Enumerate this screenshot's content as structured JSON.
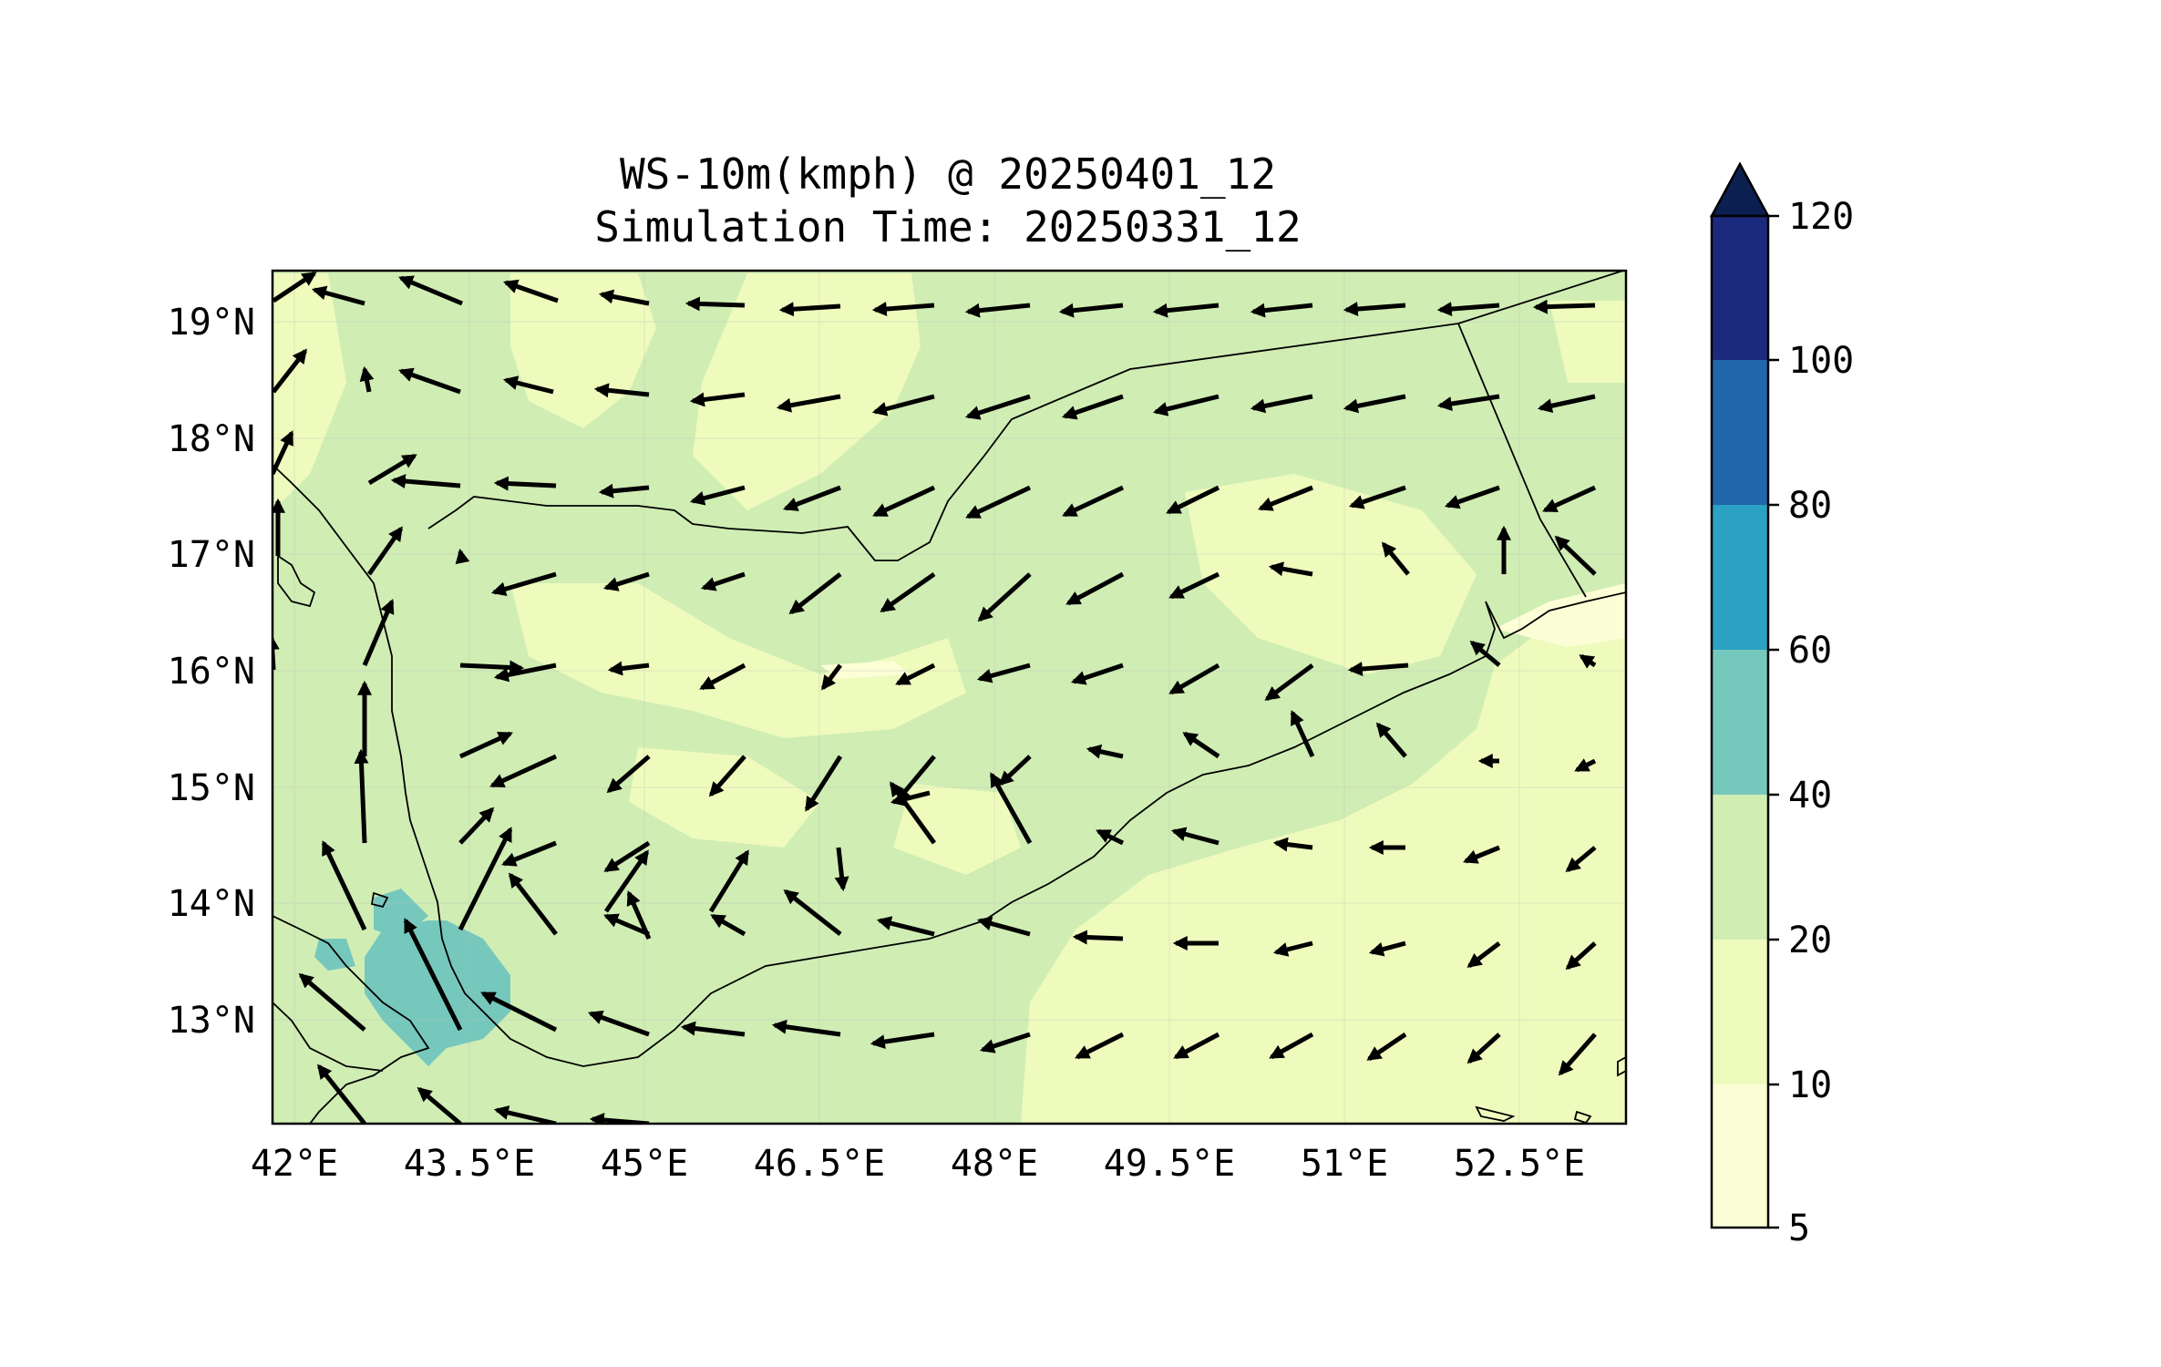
{
  "title": "WS-10m(kmph) @ 20250401_12",
  "subtitle": "Simulation Time: 20250331_12",
  "lon_ticks": [
    {
      "value": 42.0,
      "label": "42°E"
    },
    {
      "value": 43.5,
      "label": "43.5°E"
    },
    {
      "value": 45.0,
      "label": "45°E"
    },
    {
      "value": 46.5,
      "label": "46.5°E"
    },
    {
      "value": 48.0,
      "label": "48°E"
    },
    {
      "value": 49.5,
      "label": "49.5°E"
    },
    {
      "value": 51.0,
      "label": "51°E"
    },
    {
      "value": 52.5,
      "label": "52.5°E"
    }
  ],
  "lat_ticks": [
    {
      "value": 19,
      "label": "19°N"
    },
    {
      "value": 18,
      "label": "18°N"
    },
    {
      "value": 17,
      "label": "17°N"
    },
    {
      "value": 16,
      "label": "16°N"
    },
    {
      "value": 15,
      "label": "15°N"
    },
    {
      "value": 14,
      "label": "14°N"
    },
    {
      "value": 13,
      "label": "13°N"
    }
  ],
  "extent": {
    "lon_min": 41.9,
    "lon_max": 53.7,
    "lat_min": 12.1,
    "lat_max": 19.45
  },
  "colorbar": {
    "ticks": [
      "5",
      "10",
      "20",
      "40",
      "60",
      "80",
      "100",
      "120"
    ],
    "colors": [
      "#fcfed6",
      "#eefbbd",
      "#d0edb4",
      "#76c8bd",
      "#2ba2c3",
      "#2166ab",
      "#1c2a7e"
    ],
    "extend_color": "#0b1f51"
  },
  "colors": {
    "zone_10_20": "#eefbbd",
    "zone_20_40": "#d0edb4",
    "zone_40_60": "#76c8bd",
    "zone_5_10": "#fcfed6"
  }
}
